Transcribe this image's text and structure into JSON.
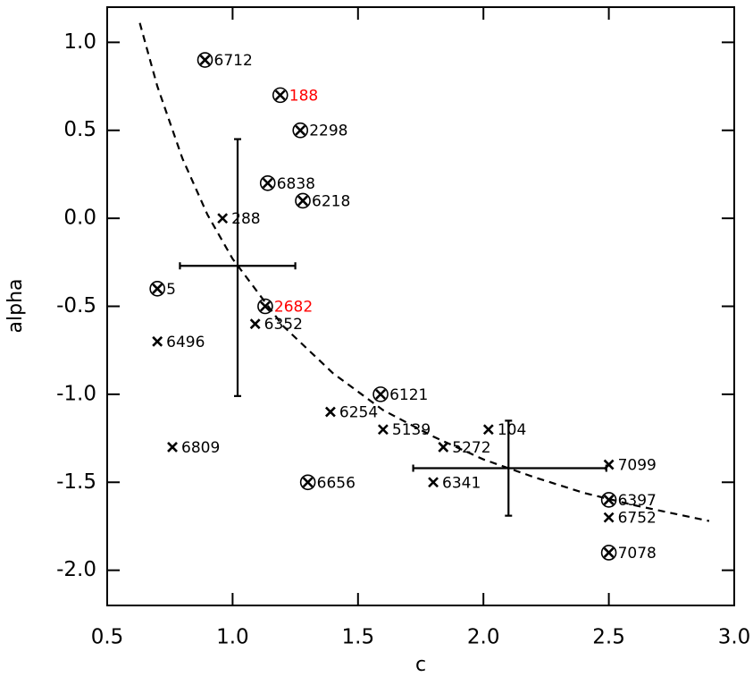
{
  "chart_data": {
    "type": "scatter",
    "x_label": "c",
    "y_label": "alpha",
    "xlim": [
      0.5,
      3.0
    ],
    "ylim": [
      -2.2,
      1.2
    ],
    "xticks": [
      {
        "value": 0.5,
        "label": "0.5"
      },
      {
        "value": 1.0,
        "label": "1.0"
      },
      {
        "value": 1.5,
        "label": "1.5"
      },
      {
        "value": 2.0,
        "label": "2.0"
      },
      {
        "value": 2.5,
        "label": "2.5"
      },
      {
        "value": 3.0,
        "label": "3.0"
      }
    ],
    "yticks": [
      {
        "value": 1.0,
        "label": "1.0"
      },
      {
        "value": 0.5,
        "label": "0.5"
      },
      {
        "value": 0.0,
        "label": "0.0"
      },
      {
        "value": -0.5,
        "label": "-0.5"
      },
      {
        "value": -1.0,
        "label": "-1.0"
      },
      {
        "value": -1.5,
        "label": "-1.5"
      },
      {
        "value": -2.0,
        "label": "-2.0"
      }
    ],
    "points": {
      "x": [
        0.89,
        1.19,
        1.27,
        1.14,
        1.28,
        0.96,
        0.7,
        1.13,
        1.09,
        0.7,
        1.59,
        1.39,
        1.6,
        2.02,
        1.84,
        0.76,
        2.5,
        1.3,
        1.8,
        2.5,
        2.5,
        2.5
      ],
      "values": [
        0.9,
        0.7,
        0.5,
        0.2,
        0.1,
        0.0,
        -0.4,
        -0.5,
        -0.6,
        -0.7,
        -1.0,
        -1.1,
        -1.2,
        -1.2,
        -1.3,
        -1.3,
        -1.4,
        -1.5,
        -1.5,
        -1.6,
        -1.7,
        -1.9
      ],
      "labels": [
        "6712",
        "188",
        "2298",
        "6838",
        "6218",
        "288",
        "5",
        "2682",
        "6352",
        "6496",
        "6121",
        "6254",
        "5139",
        "104",
        "5272",
        "6809",
        "7099",
        "6656",
        "6341",
        "6397",
        "6752",
        "7078"
      ],
      "circled": [
        true,
        true,
        true,
        true,
        true,
        false,
        true,
        true,
        false,
        false,
        true,
        false,
        false,
        false,
        false,
        false,
        false,
        true,
        false,
        true,
        false,
        true
      ],
      "label_colors": [
        "#000000",
        "#ff0000",
        "#000000",
        "#000000",
        "#000000",
        "#000000",
        "#000000",
        "#ff0000",
        "#000000",
        "#000000",
        "#000000",
        "#000000",
        "#000000",
        "#000000",
        "#000000",
        "#000000",
        "#000000",
        "#000000",
        "#000000",
        "#000000",
        "#000000",
        "#000000"
      ],
      "color": "#000000"
    },
    "error_bars": [
      {
        "x": 1.02,
        "y": -0.27,
        "x_range": [
          0.79,
          1.25
        ],
        "y_range": [
          0.45,
          -1.01
        ]
      },
      {
        "x": 2.1,
        "y": -1.42,
        "x_range": [
          1.72,
          2.49
        ],
        "y_range": [
          -1.15,
          -1.69
        ]
      }
    ],
    "curve": {
      "x": [
        0.63,
        0.7,
        0.8,
        0.9,
        1.0,
        1.2,
        1.4,
        1.6,
        1.8,
        2.0,
        2.2,
        2.4,
        2.6,
        2.9
      ],
      "values": [
        1.11,
        0.75,
        0.34,
        0.02,
        -0.23,
        -0.61,
        -0.88,
        -1.09,
        -1.24,
        -1.37,
        -1.47,
        -1.56,
        -1.63,
        -1.72
      ],
      "dashed": true,
      "color": "#000000"
    }
  }
}
